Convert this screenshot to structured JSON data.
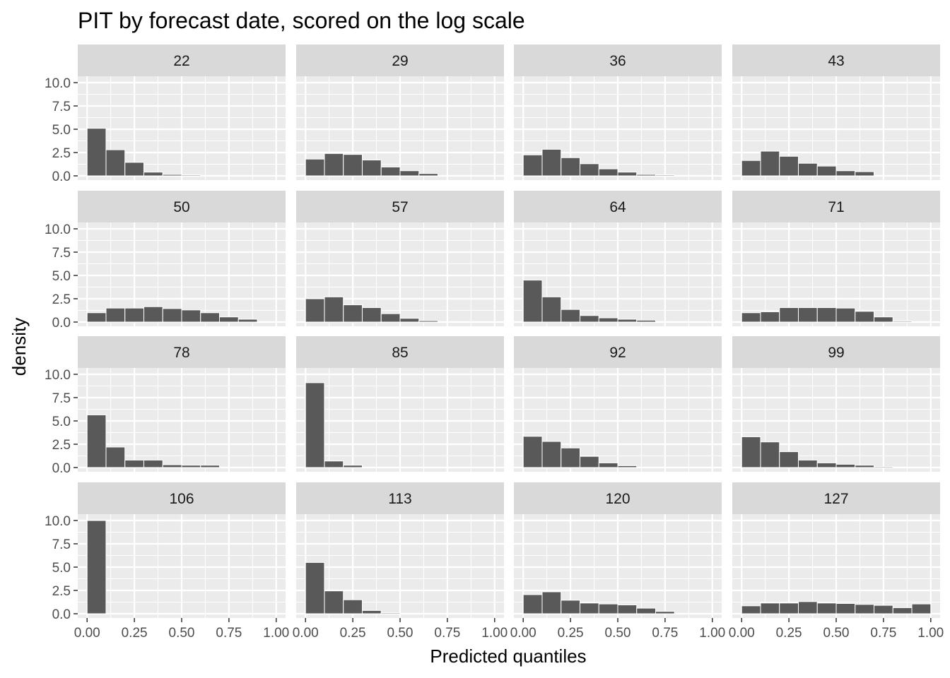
{
  "chart_data": {
    "type": "bar",
    "title": "PIT by forecast date, scored on the log scale",
    "xlabel": "Predicted quantiles",
    "ylabel": "density",
    "xlim": [
      0,
      1
    ],
    "ylim": [
      0,
      10
    ],
    "x_ticks": [
      "0.00",
      "0.25",
      "0.50",
      "0.75",
      "1.00"
    ],
    "y_ticks": [
      "0.0",
      "2.5",
      "5.0",
      "7.5",
      "10.0"
    ],
    "bin_starts": [
      0.0,
      0.1,
      0.2,
      0.3,
      0.4,
      0.5,
      0.6,
      0.7,
      0.8,
      0.9
    ],
    "bin_width": 0.1,
    "grid": true,
    "panels": [
      {
        "label": "22",
        "values": [
          5.1,
          2.8,
          1.45,
          0.4,
          0.15,
          0.1,
          0.05,
          0,
          0,
          0
        ]
      },
      {
        "label": "29",
        "values": [
          1.8,
          2.4,
          2.3,
          1.7,
          0.95,
          0.55,
          0.25,
          0,
          0,
          0
        ]
      },
      {
        "label": "36",
        "values": [
          2.25,
          2.85,
          1.95,
          1.3,
          0.75,
          0.4,
          0.15,
          0.1,
          0.05,
          0
        ]
      },
      {
        "label": "43",
        "values": [
          1.65,
          2.65,
          2.1,
          1.35,
          1.05,
          0.55,
          0.45,
          0.05,
          0,
          0
        ]
      },
      {
        "label": "50",
        "values": [
          1.0,
          1.5,
          1.5,
          1.65,
          1.45,
          1.3,
          1.0,
          0.55,
          0.3,
          0.05
        ]
      },
      {
        "label": "57",
        "values": [
          2.5,
          2.7,
          1.85,
          1.55,
          0.9,
          0.4,
          0.15,
          0.05,
          0,
          0
        ]
      },
      {
        "label": "64",
        "values": [
          4.5,
          2.7,
          1.35,
          0.7,
          0.45,
          0.3,
          0.2,
          0.05,
          0,
          0
        ]
      },
      {
        "label": "71",
        "values": [
          1.0,
          1.1,
          1.55,
          1.55,
          1.55,
          1.5,
          1.15,
          0.55,
          0.1,
          0.05
        ]
      },
      {
        "label": "78",
        "values": [
          5.65,
          2.2,
          0.8,
          0.8,
          0.3,
          0.25,
          0.25,
          0,
          0,
          0
        ]
      },
      {
        "label": "85",
        "values": [
          9.1,
          0.7,
          0.25,
          0,
          0,
          0,
          0,
          0,
          0,
          0
        ]
      },
      {
        "label": "92",
        "values": [
          3.35,
          2.8,
          2.1,
          1.2,
          0.5,
          0.2,
          0,
          0,
          0,
          0
        ]
      },
      {
        "label": "99",
        "values": [
          3.3,
          2.75,
          1.7,
          0.8,
          0.5,
          0.35,
          0.25,
          0.1,
          0.05,
          0
        ]
      },
      {
        "label": "106",
        "values": [
          10.0,
          0,
          0,
          0,
          0,
          0,
          0,
          0,
          0,
          0
        ]
      },
      {
        "label": "113",
        "values": [
          5.5,
          2.45,
          1.5,
          0.35,
          0.1,
          0.05,
          0.05,
          0,
          0,
          0
        ]
      },
      {
        "label": "120",
        "values": [
          2.05,
          2.35,
          1.45,
          1.15,
          1.05,
          0.95,
          0.6,
          0.25,
          0.05,
          0
        ]
      },
      {
        "label": "127",
        "values": [
          0.85,
          1.15,
          1.15,
          1.3,
          1.15,
          1.1,
          1.0,
          0.9,
          0.65,
          1.05
        ]
      }
    ]
  },
  "colors": {
    "panel_bg": "#ebebeb",
    "strip_bg": "#d9d9d9",
    "grid_major": "#ffffff",
    "bar_fill": "#595959"
  }
}
